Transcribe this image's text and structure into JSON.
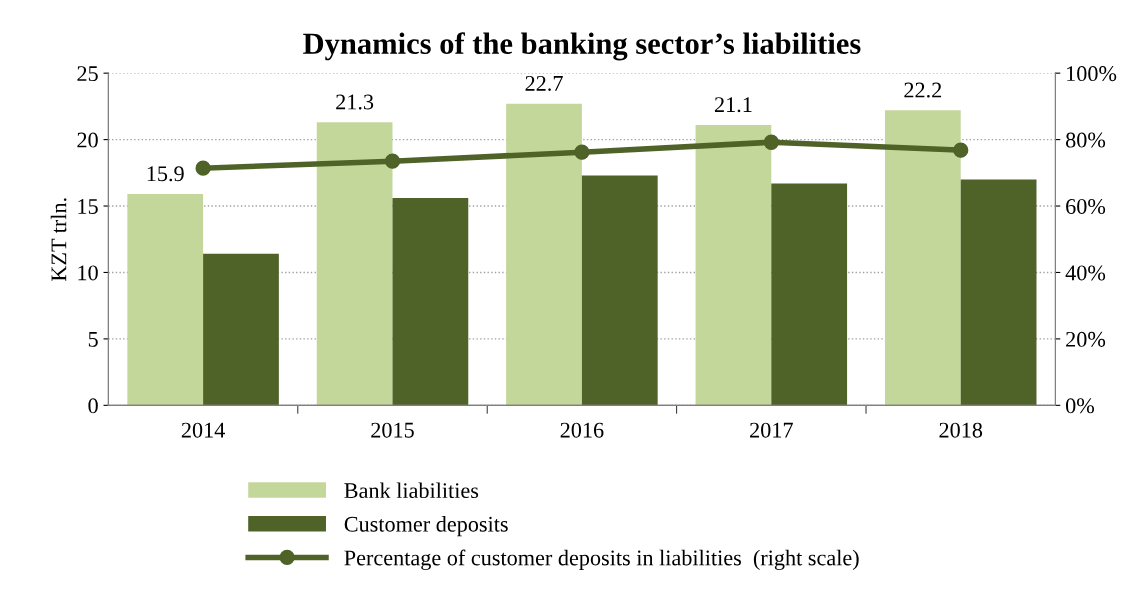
{
  "chart_data": {
    "type": "bar",
    "title": "Dynamics of the banking sector’s liabilities",
    "ylabel": "KZT trln.",
    "categories": [
      "2014",
      "2015",
      "2016",
      "2017",
      "2018"
    ],
    "series": [
      {
        "name": "Bank liabilities",
        "color": "#c4d79b",
        "values": [
          15.9,
          21.3,
          22.7,
          21.1,
          22.2
        ],
        "value_labels": [
          "15.9",
          "21.3",
          "22.7",
          "21.1",
          "22.2"
        ]
      },
      {
        "name": "Customer deposits",
        "color": "#4f6228",
        "values": [
          11.4,
          15.6,
          17.3,
          16.7,
          17.0
        ]
      },
      {
        "name": "Percentage of customer deposits in liabilities  (right scale)",
        "type": "line",
        "axis": "y2",
        "color": "#4f6228",
        "values": [
          71.4,
          73.5,
          76.2,
          79.2,
          76.8
        ]
      }
    ],
    "ylim": [
      0,
      25
    ],
    "yticks": [
      0,
      5,
      10,
      15,
      20,
      25
    ],
    "y2lim": [
      0,
      100
    ],
    "y2ticks": [
      {
        "value": 0,
        "label": "0%"
      },
      {
        "value": 20,
        "label": "20%"
      },
      {
        "value": 40,
        "label": "40%"
      },
      {
        "value": 60,
        "label": "60%"
      },
      {
        "value": 80,
        "label": "80%"
      },
      {
        "value": 100,
        "label": "100%"
      }
    ],
    "grid": "y",
    "legend": "bottom",
    "marker": "circle"
  }
}
